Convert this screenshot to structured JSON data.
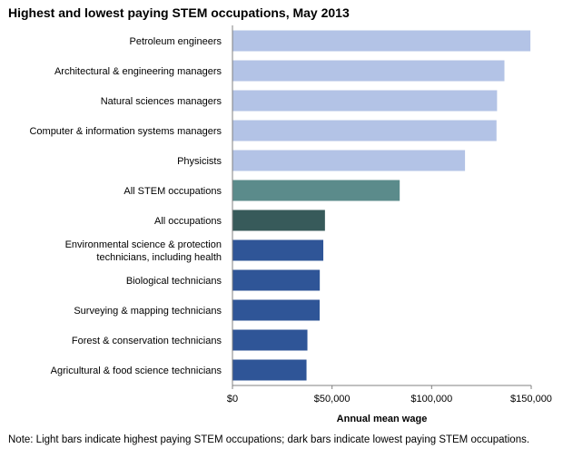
{
  "chart_data": {
    "type": "bar",
    "orientation": "horizontal",
    "title": "Highest and lowest paying STEM occupations, May 2013",
    "xlabel": "Annual mean wage",
    "ylabel": "",
    "xlim": [
      0,
      150000
    ],
    "ticks": [
      0,
      50000,
      100000,
      150000
    ],
    "tick_labels": [
      "$0",
      "$50,000",
      "$100,000",
      "$150,000"
    ],
    "grid": false,
    "categories": [
      [
        "Petroleum engineers"
      ],
      [
        "Architectural & engineering managers"
      ],
      [
        "Natural sciences managers"
      ],
      [
        "Computer & information systems managers"
      ],
      [
        "Physicists"
      ],
      [
        "All STEM occupations"
      ],
      [
        "All occupations"
      ],
      [
        "Environmental science & protection",
        "technicians, including health"
      ],
      [
        "Biological technicians"
      ],
      [
        "Surveying & mapping technicians"
      ],
      [
        "Forest & conservation technicians"
      ],
      [
        "Agricultural & food science technicians"
      ]
    ],
    "values": [
      149590,
      136550,
      132850,
      132570,
      116760,
      83970,
      46440,
      45610,
      43840,
      43780,
      37630,
      37180
    ],
    "colors": [
      "#b3c3e6",
      "#b3c3e6",
      "#b3c3e6",
      "#b3c3e6",
      "#b3c3e6",
      "#5b8b8b",
      "#375a5a",
      "#2f5597",
      "#2f5597",
      "#2f5597",
      "#2f5597",
      "#2f5597"
    ]
  },
  "note": "Note: Light bars indicate highest paying STEM occupations; dark bars indicate lowest paying STEM occupations."
}
